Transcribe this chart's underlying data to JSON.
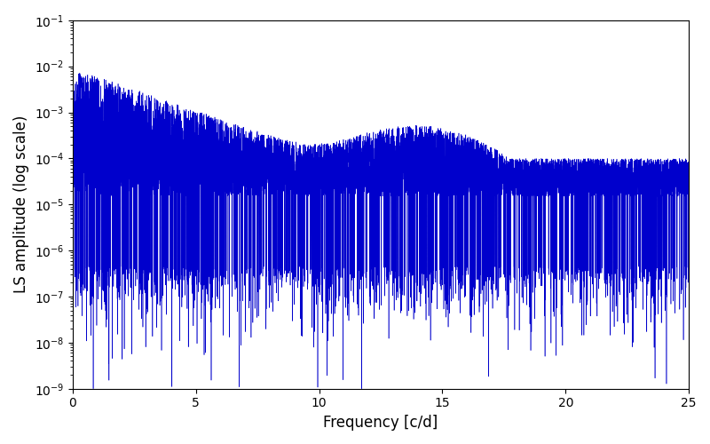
{
  "xlabel": "Frequency [c/d]",
  "ylabel": "LS amplitude (log scale)",
  "xlim": [
    0,
    25
  ],
  "ylim": [
    1e-09,
    0.1
  ],
  "line_color": "#0000cc",
  "line_width": 0.4,
  "yscale": "log",
  "xticks": [
    0,
    5,
    10,
    15,
    20,
    25
  ],
  "figsize": [
    8.0,
    5.0
  ],
  "dpi": 100,
  "background_color": "#ffffff",
  "seed": 123,
  "n_points": 10000,
  "freq_max": 25.0
}
